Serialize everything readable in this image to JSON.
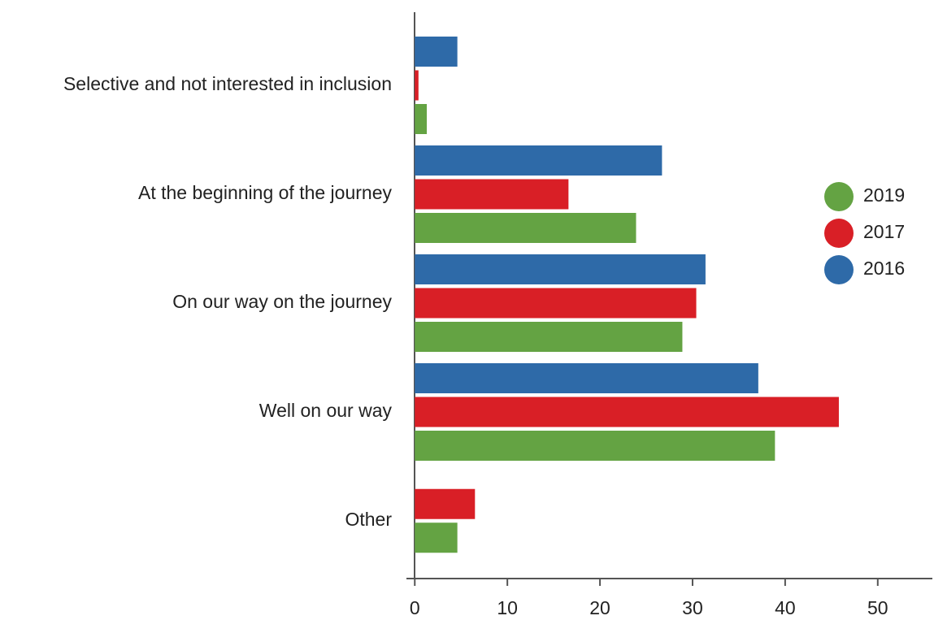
{
  "chart_data": {
    "type": "bar",
    "orientation": "horizontal",
    "categories": [
      "Selective and not interested in inclusion",
      "At the beginning of the journey",
      "On our way on the journey",
      "Well on our way",
      "Other"
    ],
    "series": [
      {
        "name": "2019",
        "color": "#64a343",
        "values": [
          1.3,
          23.9,
          28.9,
          38.9,
          4.6
        ]
      },
      {
        "name": "2017",
        "color": "#d91f26",
        "values": [
          0.4,
          16.6,
          30.4,
          45.8,
          6.5
        ]
      },
      {
        "name": "2016",
        "color": "#2e6aa8",
        "values": [
          4.6,
          26.7,
          31.4,
          37.1,
          null
        ]
      }
    ],
    "xlim": [
      -0.9,
      55.9
    ],
    "xticks": [
      0,
      10,
      20,
      30,
      40,
      50
    ],
    "legend": "right"
  }
}
